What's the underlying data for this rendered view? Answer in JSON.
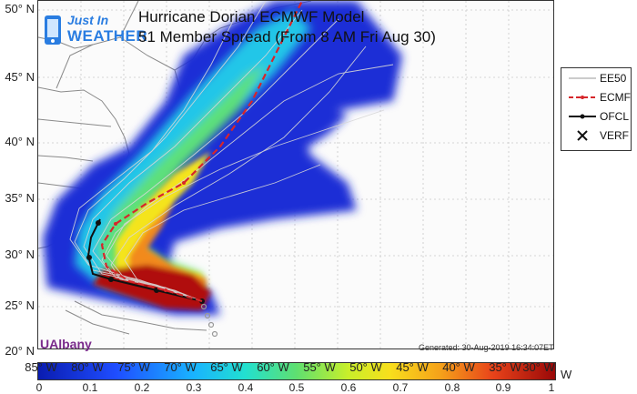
{
  "title": {
    "line1": "Hurricane Dorian ECMWF Model",
    "line2": "51 Member Spread (From 8 AM Fri Aug 30)"
  },
  "logo": {
    "line1": "Just In",
    "line2": "WEATHER"
  },
  "credit": "UAlbany",
  "generated": "Generated: 30-Aug-2019 16:34:07ET",
  "latitude_labels": [
    "50° N",
    "45° N",
    "40° N",
    "35° N",
    "30° N",
    "25° N",
    "20° N"
  ],
  "longitude_labels": [
    "85° W",
    "80° W",
    "75° W",
    "70° W",
    "65° W",
    "60° W",
    "55° W",
    "50° W",
    "45° W",
    "40° W",
    "35° W",
    "30° W"
  ],
  "colorbar": {
    "ticks": [
      "0",
      "0.1",
      "0.2",
      "0.3",
      "0.4",
      "0.5",
      "0.6",
      "0.7",
      "0.8",
      "0.9",
      "1"
    ],
    "unit": "W"
  },
  "legend": [
    {
      "label": "EE50",
      "color": "#cccccc",
      "style": "solid"
    },
    {
      "label": "ECMF",
      "color": "#d6262b",
      "style": "dashed"
    },
    {
      "label": "OFCL",
      "color": "#111111",
      "style": "solid-dot"
    },
    {
      "label": "VERF",
      "color": "#111111",
      "style": "x-marker"
    }
  ],
  "colors": {
    "ensemble_track": "#cccccc",
    "ecmf_track": "#d6262b",
    "ofcl_track": "#111111",
    "land_border": "#8a8a8a"
  }
}
